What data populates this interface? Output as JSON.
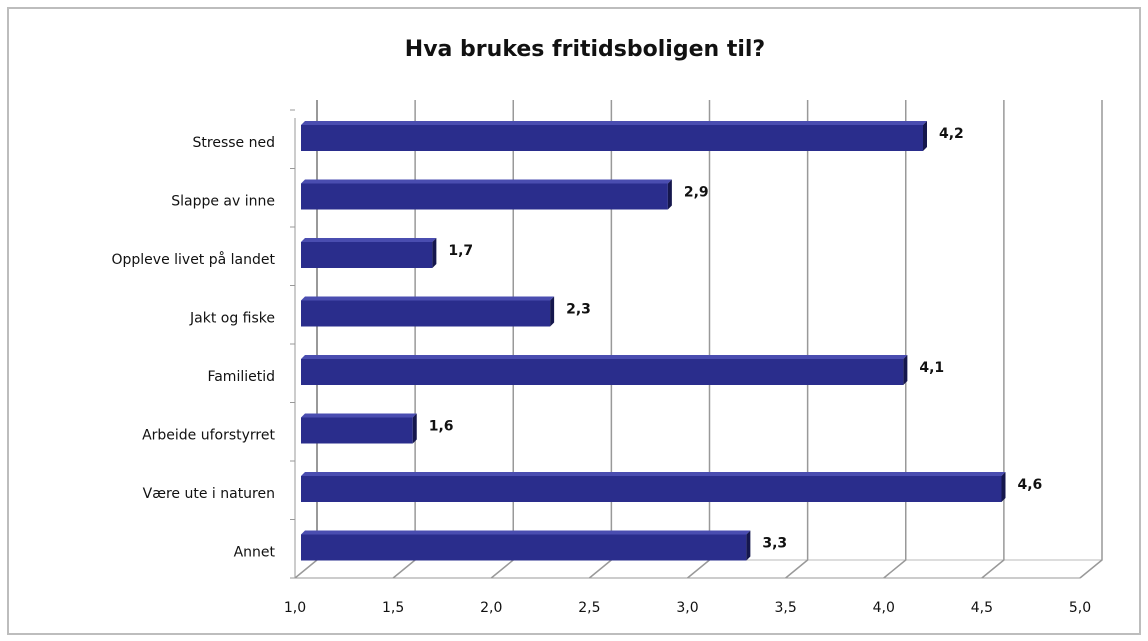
{
  "chart_data": {
    "type": "bar",
    "orientation": "horizontal",
    "title": "Hva brukes fritidsboligen til?",
    "categories": [
      "Stresse ned",
      "Slappe av inne",
      "Oppleve livet på landet",
      "Jakt og fiske",
      "Familietid",
      "Arbeide uforstyrret",
      "Være ute i naturen",
      "Annet"
    ],
    "values": [
      4.2,
      2.9,
      1.7,
      2.3,
      4.1,
      1.6,
      4.6,
      3.3
    ],
    "value_labels": [
      "4,2",
      "2,9",
      "1,7",
      "2,3",
      "4,1",
      "1,6",
      "4,6",
      "3,3"
    ],
    "color": "#2a2d8c",
    "xlim": [
      1.0,
      5.0
    ],
    "xticks": [
      {
        "value": 1.0,
        "label": "1,0"
      },
      {
        "value": 1.5,
        "label": "1,5"
      },
      {
        "value": 2.0,
        "label": "2,0"
      },
      {
        "value": 2.5,
        "label": "2,5"
      },
      {
        "value": 3.0,
        "label": "3,0"
      },
      {
        "value": 3.5,
        "label": "3,5"
      },
      {
        "value": 4.0,
        "label": "4,0"
      },
      {
        "value": 4.5,
        "label": "4,5"
      },
      {
        "value": 5.0,
        "label": "5,0"
      }
    ],
    "grid": true
  }
}
